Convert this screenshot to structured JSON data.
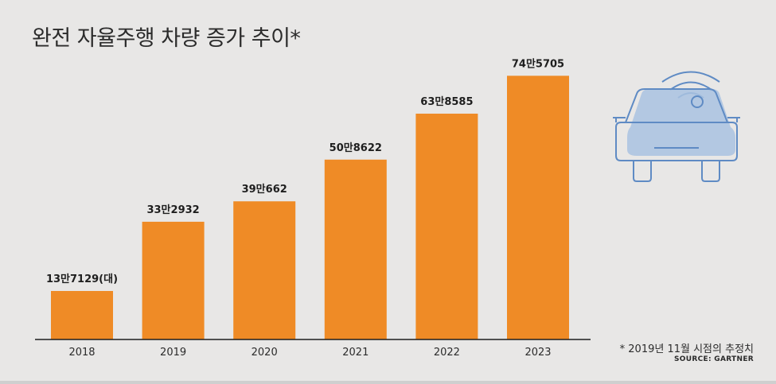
{
  "title": "완전 자율주행 차량 증가 추이*",
  "note": "* 2019년 11월 시점의 추정치",
  "source": "SOURCE: GARTNER",
  "icon": "autonomous-car-icon",
  "colors": {
    "bar": "#ef8b26",
    "background": "#e8e7e6",
    "car_fill": "#a9c2e0",
    "car_stroke": "#5f8bc4"
  },
  "chart_data": {
    "type": "bar",
    "categories": [
      "2018",
      "2019",
      "2020",
      "2021",
      "2022",
      "2023"
    ],
    "values": [
      137129,
      332932,
      390662,
      508622,
      638585,
      745705
    ],
    "data_labels": [
      "13만7129(대)",
      "33만2932",
      "39만662",
      "50만8622",
      "63만8585",
      "74만5705"
    ],
    "title": "완전 자율주행 차량 증가 추이*",
    "xlabel": "",
    "ylabel": "",
    "ylim": [
      0,
      960000
    ],
    "grid": false,
    "legend": "none"
  }
}
